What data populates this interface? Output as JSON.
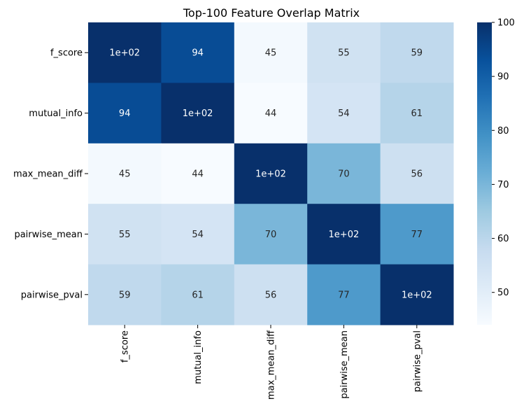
{
  "chart_data": {
    "type": "heatmap",
    "title": "Top-100 Feature Overlap Matrix",
    "xlabel": "",
    "ylabel": "",
    "x_categories": [
      "f_score",
      "mutual_info",
      "max_mean_diff",
      "pairwise_mean",
      "pairwise_pval"
    ],
    "y_categories": [
      "f_score",
      "mutual_info",
      "max_mean_diff",
      "pairwise_mean",
      "pairwise_pval"
    ],
    "values": [
      [
        100,
        94,
        45,
        55,
        59
      ],
      [
        94,
        100,
        44,
        54,
        61
      ],
      [
        45,
        44,
        100,
        70,
        56
      ],
      [
        55,
        54,
        70,
        100,
        77
      ],
      [
        59,
        61,
        56,
        77,
        100
      ]
    ],
    "cell_labels": [
      [
        "1e+02",
        "94",
        "45",
        "55",
        "59"
      ],
      [
        "94",
        "1e+02",
        "44",
        "54",
        "61"
      ],
      [
        "45",
        "44",
        "1e+02",
        "70",
        "56"
      ],
      [
        "55",
        "54",
        "70",
        "1e+02",
        "77"
      ],
      [
        "59",
        "61",
        "56",
        "77",
        "1e+02"
      ]
    ],
    "colormap": "Blues",
    "color_range": [
      44,
      100
    ],
    "colorbar_ticks": [
      "100",
      "90",
      "80",
      "70",
      "60",
      "50"
    ],
    "colorbar_tick_values": [
      100,
      90,
      80,
      70,
      60,
      50
    ],
    "grid": false
  }
}
